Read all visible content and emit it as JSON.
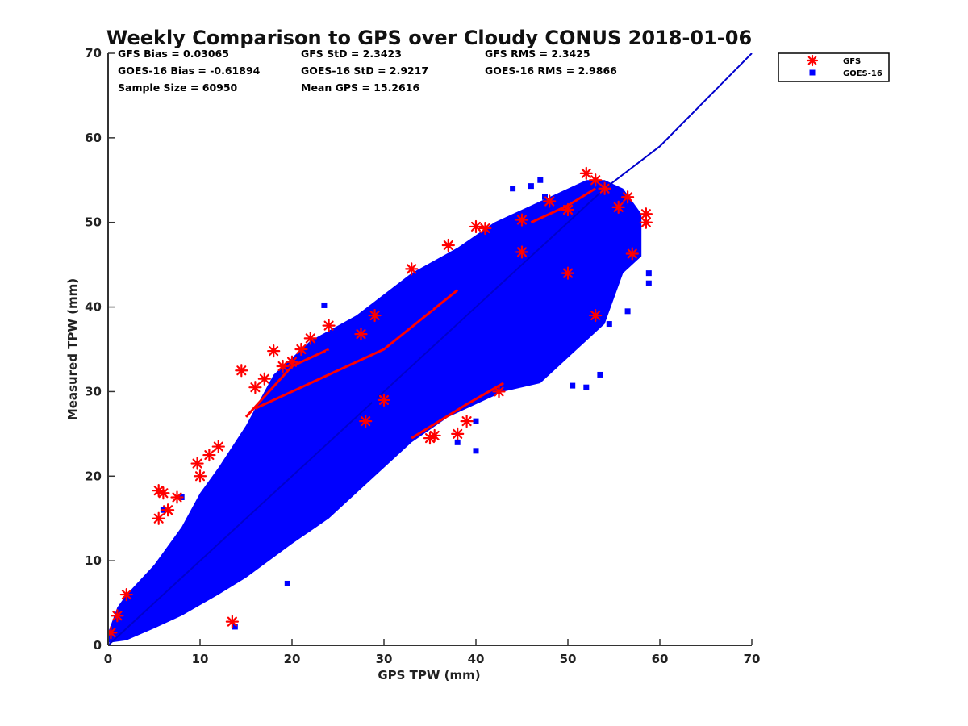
{
  "chart_data": {
    "type": "scatter",
    "title": "Weekly Comparison to GPS over Cloudy CONUS 2018-01-06",
    "xlabel": "GPS TPW (mm)",
    "ylabel": "Measured TPW (mm)",
    "xlim": [
      0,
      70
    ],
    "ylim": [
      0,
      70
    ],
    "xticks": [
      "0",
      "10",
      "20",
      "30",
      "40",
      "50",
      "60",
      "70"
    ],
    "yticks": [
      "0",
      "10",
      "20",
      "30",
      "40",
      "50",
      "60",
      "70"
    ],
    "grid": false,
    "legend_position": "outside-top-right",
    "stats": [
      [
        "GFS Bias = 0.03065",
        "GFS StD = 2.3423",
        "GFS RMS = 2.3425"
      ],
      [
        "GOES-16 Bias = -0.61894",
        "GOES-16 StD = 2.9217",
        "GOES-16 RMS = 2.9866"
      ],
      [
        "Sample Size = 60950",
        "Mean GPS = 15.2616",
        ""
      ]
    ],
    "reference_line": {
      "x": [
        0,
        10,
        20,
        30,
        40,
        50,
        54,
        60,
        70
      ],
      "y": [
        0,
        10,
        20,
        30,
        40,
        50,
        54,
        59,
        70
      ],
      "color": "#0000cc"
    },
    "series": [
      {
        "name": "GFS",
        "marker": "asterisk",
        "color": "#ff0000",
        "x": [
          0.3,
          1,
          2,
          5.5,
          5.5,
          6,
          6.5,
          7.5,
          9.7,
          10,
          11,
          12,
          13.5,
          14.5,
          16,
          17,
          18,
          19,
          20,
          21,
          22,
          24,
          27.5,
          29,
          33,
          35,
          37,
          39,
          41,
          42.5,
          45,
          48,
          50,
          52,
          53,
          54,
          55.5,
          56.5,
          57,
          58.5,
          58.5,
          53,
          35.5,
          38,
          40,
          45,
          50,
          30,
          28
        ],
        "y": [
          1.5,
          3.5,
          6,
          15,
          18.3,
          18,
          16,
          17.5,
          21.5,
          20,
          22.5,
          23.5,
          2.8,
          32.5,
          30.5,
          31.5,
          34.8,
          33,
          33.5,
          35,
          36.3,
          37.8,
          36.8,
          39,
          44.5,
          24.5,
          47.3,
          26.5,
          49.3,
          30,
          50.3,
          52.5,
          51.5,
          55.8,
          55,
          54,
          51.8,
          53,
          46.3,
          51,
          50,
          39,
          24.8,
          25,
          49.5,
          46.5,
          44,
          29,
          26.5
        ]
      },
      {
        "name": "GOES-16",
        "marker": "square",
        "color": "#0000ff",
        "x": [
          13.8,
          19.5,
          23.5,
          29,
          35,
          38,
          40,
          42,
          44,
          46,
          47,
          47.5,
          50.5,
          52,
          53.5,
          54.5,
          56.5,
          58.8,
          58.8,
          54,
          55.5,
          50,
          43,
          49,
          40,
          6,
          8,
          16,
          24
        ],
        "y": [
          2.2,
          7.3,
          40.2,
          29,
          40,
          24,
          23,
          32,
          54,
          54.3,
          55,
          53,
          30.7,
          30.5,
          32,
          38,
          39.5,
          44,
          42.8,
          48,
          45,
          35,
          37,
          35,
          26.5,
          16,
          17.5,
          24.5,
          34.5
        ]
      }
    ]
  }
}
